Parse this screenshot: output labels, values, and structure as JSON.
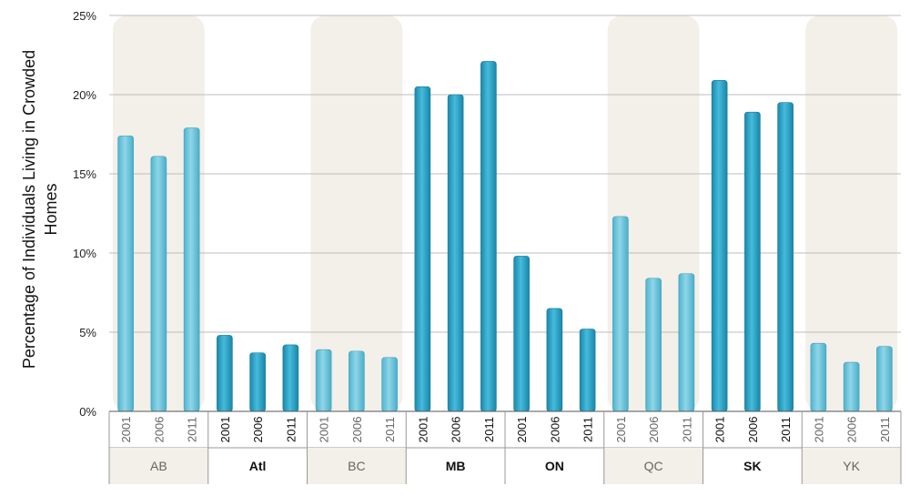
{
  "chart_data": {
    "type": "bar",
    "ylabel_lines": [
      "Percentage of Individuals Living in Crowded",
      "Homes"
    ],
    "yticks": [
      "0%",
      "5%",
      "10%",
      "15%",
      "20%",
      "25%"
    ],
    "ylim": [
      0,
      25
    ],
    "grid": true,
    "years": [
      "2001",
      "2006",
      "2011"
    ],
    "groups": [
      {
        "name": "AB",
        "values": [
          17.4,
          16.1,
          17.9
        ],
        "style": "light"
      },
      {
        "name": "Atl",
        "values": [
          4.8,
          3.7,
          4.2
        ],
        "style": "dark"
      },
      {
        "name": "BC",
        "values": [
          3.9,
          3.8,
          3.4
        ],
        "style": "light"
      },
      {
        "name": "MB",
        "values": [
          20.5,
          20.0,
          22.1
        ],
        "style": "dark"
      },
      {
        "name": "ON",
        "values": [
          9.8,
          6.5,
          5.2
        ],
        "style": "dark"
      },
      {
        "name": "QC",
        "values": [
          12.3,
          8.4,
          8.7
        ],
        "style": "light"
      },
      {
        "name": "SK",
        "values": [
          20.9,
          18.9,
          19.5
        ],
        "style": "dark"
      },
      {
        "name": "YK",
        "values": [
          4.3,
          3.1,
          4.1
        ],
        "style": "light"
      }
    ],
    "colors": {
      "light_bar": "#68c3da",
      "dark_bar": "#2ea3c6",
      "band": "#f3efe9",
      "grid": "#bdbdbd"
    }
  }
}
